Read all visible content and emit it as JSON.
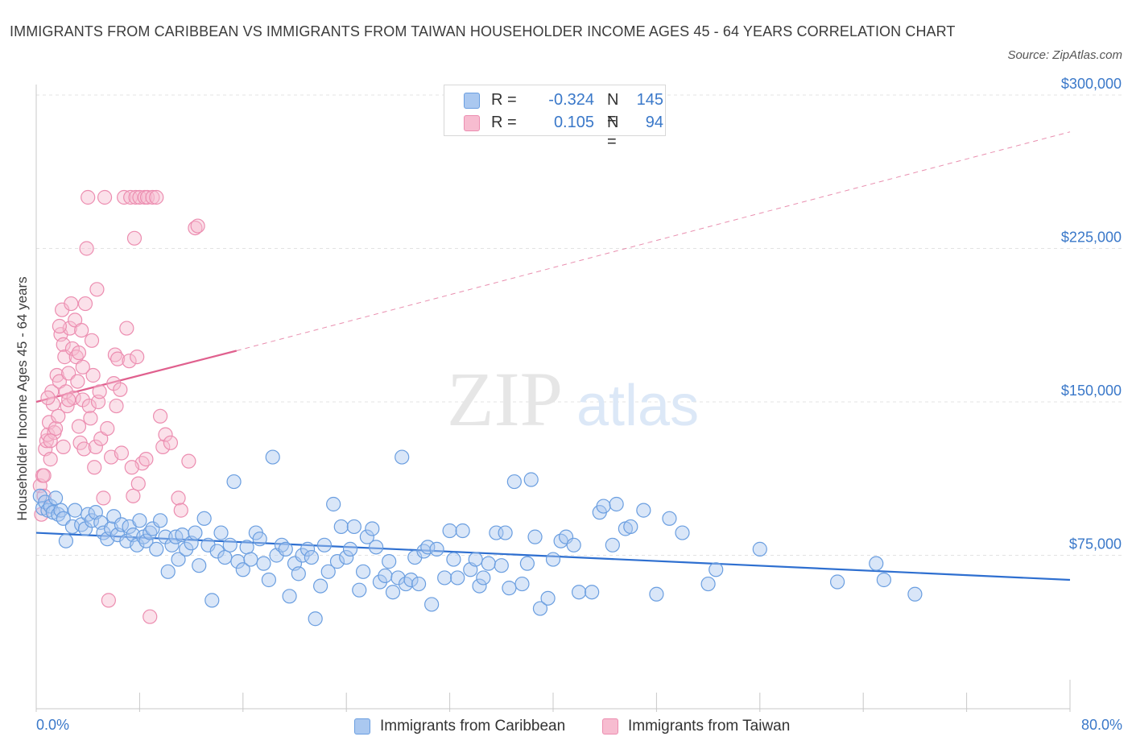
{
  "header": {
    "title": "IMMIGRANTS FROM CARIBBEAN VS IMMIGRANTS FROM TAIWAN HOUSEHOLDER INCOME AGES 45 - 64 YEARS CORRELATION CHART",
    "source": "Source: ZipAtlas.com"
  },
  "watermark": {
    "zip": "ZIP",
    "atlas": "atlas"
  },
  "legend": {
    "r_label": "R =",
    "n_label": "N =",
    "rows": [
      {
        "r": "-0.324",
        "n": "145"
      },
      {
        "r": "0.105",
        "n": "94"
      }
    ]
  },
  "colors": {
    "caribbean_fill": "#aac8f0",
    "caribbean_stroke": "#6a9ee0",
    "caribbean_line": "#2e6fd0",
    "taiwan_fill": "#f7bcd0",
    "taiwan_stroke": "#ec8db0",
    "taiwan_line": "#e0608e",
    "axis_text": "#3a78c9",
    "grid": "#e3e3e3"
  },
  "chart_data": {
    "type": "scatter",
    "title": "IMMIGRANTS FROM CARIBBEAN VS IMMIGRANTS FROM TAIWAN HOUSEHOLDER INCOME AGES 45 - 64 YEARS CORRELATION CHART",
    "xlabel": "",
    "ylabel": "Householder Income Ages 45 - 64 years",
    "xlim": [
      0,
      80
    ],
    "ylim": [
      0,
      300000
    ],
    "x_tick_labels": [
      "0.0%",
      "80.0%"
    ],
    "y_ticks": [
      75000,
      150000,
      225000,
      300000
    ],
    "y_tick_labels": [
      "$75,000",
      "$150,000",
      "$225,000",
      "$300,000"
    ],
    "grid": true,
    "legend_position": "top-center",
    "series": [
      {
        "name": "Immigrants from Caribbean",
        "r": -0.324,
        "n": 145,
        "trend": {
          "x": [
            0,
            80
          ],
          "y": [
            86000,
            63000
          ],
          "dashed_extension": false
        },
        "points": [
          [
            0.3,
            104000
          ],
          [
            0.5,
            98000
          ],
          [
            0.7,
            101000
          ],
          [
            0.9,
            97000
          ],
          [
            1.1,
            99000
          ],
          [
            1.3,
            96000
          ],
          [
            1.5,
            103000
          ],
          [
            1.7,
            95000
          ],
          [
            1.9,
            97000
          ],
          [
            2.1,
            93000
          ],
          [
            2.3,
            82000
          ],
          [
            2.8,
            89000
          ],
          [
            3.0,
            97000
          ],
          [
            3.5,
            90000
          ],
          [
            3.8,
            88000
          ],
          [
            4.0,
            95000
          ],
          [
            4.3,
            92000
          ],
          [
            4.6,
            96000
          ],
          [
            5.0,
            91000
          ],
          [
            5.2,
            86000
          ],
          [
            5.5,
            83000
          ],
          [
            5.8,
            88000
          ],
          [
            6.0,
            94000
          ],
          [
            6.3,
            85000
          ],
          [
            6.6,
            90000
          ],
          [
            7.0,
            82000
          ],
          [
            7.2,
            89000
          ],
          [
            7.5,
            85000
          ],
          [
            7.8,
            80000
          ],
          [
            8.0,
            92000
          ],
          [
            8.3,
            84000
          ],
          [
            8.5,
            82000
          ],
          [
            8.8,
            86000
          ],
          [
            9.0,
            88000
          ],
          [
            9.3,
            78000
          ],
          [
            9.6,
            92000
          ],
          [
            10.0,
            84000
          ],
          [
            10.2,
            67000
          ],
          [
            10.5,
            80000
          ],
          [
            10.8,
            84000
          ],
          [
            11.0,
            73000
          ],
          [
            11.3,
            85000
          ],
          [
            11.6,
            78000
          ],
          [
            12.0,
            81000
          ],
          [
            12.3,
            86000
          ],
          [
            12.6,
            70000
          ],
          [
            13.0,
            93000
          ],
          [
            13.3,
            80000
          ],
          [
            13.6,
            53000
          ],
          [
            14.0,
            77000
          ],
          [
            14.3,
            86000
          ],
          [
            14.6,
            74000
          ],
          [
            15.0,
            80000
          ],
          [
            15.3,
            111000
          ],
          [
            15.6,
            72000
          ],
          [
            16.0,
            68000
          ],
          [
            16.3,
            79000
          ],
          [
            16.6,
            73000
          ],
          [
            17.0,
            86000
          ],
          [
            17.3,
            83000
          ],
          [
            17.6,
            71000
          ],
          [
            18.0,
            63000
          ],
          [
            18.3,
            123000
          ],
          [
            18.6,
            75000
          ],
          [
            19.0,
            80000
          ],
          [
            19.3,
            78000
          ],
          [
            19.6,
            55000
          ],
          [
            20.0,
            71000
          ],
          [
            20.3,
            66000
          ],
          [
            20.6,
            75000
          ],
          [
            21.0,
            78000
          ],
          [
            21.3,
            74000
          ],
          [
            21.6,
            44000
          ],
          [
            22.0,
            60000
          ],
          [
            22.3,
            80000
          ],
          [
            22.6,
            67000
          ],
          [
            23.0,
            100000
          ],
          [
            23.3,
            72000
          ],
          [
            23.6,
            89000
          ],
          [
            24.0,
            74000
          ],
          [
            24.3,
            78000
          ],
          [
            24.6,
            89000
          ],
          [
            25.0,
            58000
          ],
          [
            25.3,
            67000
          ],
          [
            25.6,
            84000
          ],
          [
            26.0,
            88000
          ],
          [
            26.3,
            79000
          ],
          [
            26.6,
            62000
          ],
          [
            27.0,
            65000
          ],
          [
            27.3,
            72000
          ],
          [
            27.6,
            57000
          ],
          [
            28.0,
            64000
          ],
          [
            28.3,
            123000
          ],
          [
            28.6,
            61000
          ],
          [
            29.0,
            63000
          ],
          [
            29.3,
            74000
          ],
          [
            29.6,
            61000
          ],
          [
            30.0,
            77000
          ],
          [
            30.3,
            79000
          ],
          [
            30.6,
            51000
          ],
          [
            31.0,
            78000
          ],
          [
            31.6,
            64000
          ],
          [
            32.0,
            87000
          ],
          [
            32.3,
            73000
          ],
          [
            32.6,
            64000
          ],
          [
            33.0,
            87000
          ],
          [
            33.6,
            68000
          ],
          [
            34.0,
            73000
          ],
          [
            34.3,
            60000
          ],
          [
            34.6,
            64000
          ],
          [
            35.0,
            71000
          ],
          [
            35.6,
            86000
          ],
          [
            36.0,
            70000
          ],
          [
            36.3,
            86000
          ],
          [
            36.6,
            59000
          ],
          [
            37.0,
            111000
          ],
          [
            37.6,
            61000
          ],
          [
            38.0,
            71000
          ],
          [
            38.3,
            112000
          ],
          [
            38.6,
            84000
          ],
          [
            39.0,
            49000
          ],
          [
            39.6,
            54000
          ],
          [
            40.0,
            73000
          ],
          [
            40.6,
            82000
          ],
          [
            41.0,
            84000
          ],
          [
            41.6,
            80000
          ],
          [
            42.0,
            57000
          ],
          [
            43.0,
            57000
          ],
          [
            43.6,
            96000
          ],
          [
            43.9,
            99000
          ],
          [
            44.6,
            80000
          ],
          [
            44.9,
            100000
          ],
          [
            45.6,
            88000
          ],
          [
            46.0,
            89000
          ],
          [
            47.0,
            97000
          ],
          [
            48.0,
            56000
          ],
          [
            49.0,
            93000
          ],
          [
            50.0,
            86000
          ],
          [
            52.0,
            61000
          ],
          [
            52.6,
            68000
          ],
          [
            56.0,
            78000
          ],
          [
            62.0,
            62000
          ],
          [
            65.0,
            71000
          ],
          [
            65.6,
            63000
          ],
          [
            68.0,
            56000
          ]
        ]
      },
      {
        "name": "Immigrants from Taiwan",
        "r": 0.105,
        "n": 94,
        "trend": {
          "x": [
            0,
            15.5
          ],
          "y": [
            150000,
            175000
          ],
          "dashed_extension": {
            "x": [
              15.5,
              80
            ],
            "y": [
              175000,
              282000
            ]
          }
        },
        "points": [
          [
            0.3,
            109000
          ],
          [
            0.4,
            95000
          ],
          [
            0.5,
            114000
          ],
          [
            0.6,
            104000
          ],
          [
            0.7,
            127000
          ],
          [
            0.8,
            131000
          ],
          [
            0.9,
            134000
          ],
          [
            1.0,
            140000
          ],
          [
            1.1,
            122000
          ],
          [
            1.2,
            155000
          ],
          [
            1.3,
            149000
          ],
          [
            1.4,
            135000
          ],
          [
            1.5,
            137000
          ],
          [
            1.6,
            163000
          ],
          [
            1.7,
            143000
          ],
          [
            1.8,
            160000
          ],
          [
            1.9,
            183000
          ],
          [
            2.0,
            195000
          ],
          [
            2.1,
            178000
          ],
          [
            2.2,
            172000
          ],
          [
            2.3,
            155000
          ],
          [
            2.4,
            148000
          ],
          [
            2.5,
            164000
          ],
          [
            2.6,
            186000
          ],
          [
            2.7,
            198000
          ],
          [
            2.8,
            176000
          ],
          [
            2.9,
            152000
          ],
          [
            3.0,
            190000
          ],
          [
            3.1,
            172000
          ],
          [
            3.2,
            160000
          ],
          [
            3.3,
            138000
          ],
          [
            3.4,
            130000
          ],
          [
            3.5,
            185000
          ],
          [
            3.6,
            151000
          ],
          [
            3.7,
            127000
          ],
          [
            3.8,
            198000
          ],
          [
            3.9,
            225000
          ],
          [
            4.0,
            250000
          ],
          [
            4.1,
            148000
          ],
          [
            4.2,
            142000
          ],
          [
            4.3,
            180000
          ],
          [
            4.4,
            163000
          ],
          [
            4.5,
            118000
          ],
          [
            4.6,
            128000
          ],
          [
            4.7,
            205000
          ],
          [
            4.8,
            150000
          ],
          [
            5.0,
            132000
          ],
          [
            5.3,
            250000
          ],
          [
            5.5,
            137000
          ],
          [
            5.6,
            53000
          ],
          [
            5.8,
            123000
          ],
          [
            6.0,
            159000
          ],
          [
            6.1,
            173000
          ],
          [
            6.3,
            171000
          ],
          [
            6.5,
            156000
          ],
          [
            6.6,
            125000
          ],
          [
            6.8,
            250000
          ],
          [
            7.0,
            186000
          ],
          [
            7.2,
            170000
          ],
          [
            7.3,
            250000
          ],
          [
            7.5,
            104000
          ],
          [
            7.6,
            230000
          ],
          [
            7.7,
            250000
          ],
          [
            7.8,
            172000
          ],
          [
            7.9,
            110000
          ],
          [
            8.0,
            250000
          ],
          [
            8.2,
            120000
          ],
          [
            8.4,
            250000
          ],
          [
            8.5,
            122000
          ],
          [
            8.6,
            250000
          ],
          [
            8.8,
            45000
          ],
          [
            9.0,
            250000
          ],
          [
            9.6,
            143000
          ],
          [
            9.8,
            128000
          ],
          [
            10.0,
            134000
          ],
          [
            10.4,
            130000
          ],
          [
            11.0,
            103000
          ],
          [
            11.2,
            97000
          ],
          [
            11.8,
            121000
          ],
          [
            12.3,
            235000
          ],
          [
            12.5,
            236000
          ],
          [
            1.1,
            131000
          ],
          [
            2.5,
            151000
          ],
          [
            3.3,
            174000
          ],
          [
            1.8,
            187000
          ],
          [
            0.6,
            114000
          ],
          [
            5.2,
            103000
          ],
          [
            9.3,
            250000
          ],
          [
            6.2,
            148000
          ],
          [
            2.1,
            128000
          ],
          [
            4.9,
            155000
          ],
          [
            0.9,
            152000
          ],
          [
            3.6,
            167000
          ],
          [
            7.4,
            118000
          ]
        ]
      }
    ]
  },
  "x_axis": {
    "left_label": "0.0%",
    "right_label": "80.0%"
  },
  "bottom_legend": {
    "items": [
      {
        "label": "Immigrants from Caribbean"
      },
      {
        "label": "Immigrants from Taiwan"
      }
    ]
  }
}
